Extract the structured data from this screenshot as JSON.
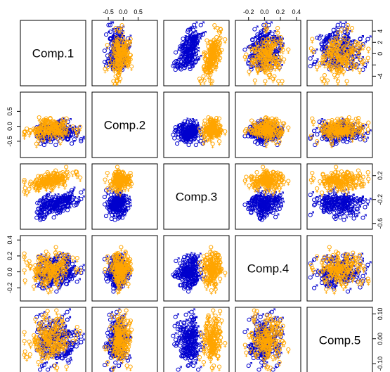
{
  "chart_data": {
    "type": "scatter",
    "kind": "pairs-plot",
    "variables": [
      "Comp.1",
      "Comp.2",
      "Comp.3",
      "Comp.4",
      "Comp.5"
    ],
    "ranges": {
      "Comp.1": [
        -5.2,
        5.4
      ],
      "Comp.2": [
        -0.95,
        1.05
      ],
      "Comp.3": [
        -0.65,
        0.35
      ],
      "Comp.4": [
        -0.33,
        0.42
      ],
      "Comp.5": [
        -0.125,
        0.115
      ]
    },
    "ticks": {
      "Comp.1": [
        -4,
        -2,
        0,
        2,
        4
      ],
      "Comp.2": [
        -0.5,
        0.0,
        0.5
      ],
      "Comp.3": [
        -0.6,
        -0.2,
        0.2
      ],
      "Comp.4": [
        -0.2,
        0.0,
        0.2,
        0.4
      ],
      "Comp.5": [
        -0.1,
        0.0,
        0.1
      ]
    },
    "tick_labels": {
      "Comp.1": [
        "-4",
        "",
        "0",
        "2",
        "4"
      ],
      "Comp.2": [
        "-0.5",
        "0.0",
        "0.5"
      ],
      "Comp.3": [
        "-0.6",
        "-0.2",
        "0.2"
      ],
      "Comp.4": [
        "-0.2",
        "0.0",
        "0.2",
        "0.4"
      ],
      "Comp.5": [
        "-0.10",
        "0.00",
        "0.10"
      ]
    },
    "groups": [
      {
        "symbol": "♂",
        "color": "#0000cd",
        "mean": [
          0.6,
          -0.15,
          -0.28,
          0.0,
          -0.01
        ],
        "sd": [
          1.9,
          0.3,
          0.1,
          0.1,
          0.045
        ]
      },
      {
        "symbol": "♀",
        "color": "#ffa500",
        "mean": [
          -0.6,
          -0.05,
          0.1,
          0.02,
          0.0
        ],
        "sd": [
          1.9,
          0.3,
          0.07,
          0.1,
          0.045
        ]
      }
    ],
    "points_per_group": 150,
    "grid": false,
    "legend": "none"
  }
}
